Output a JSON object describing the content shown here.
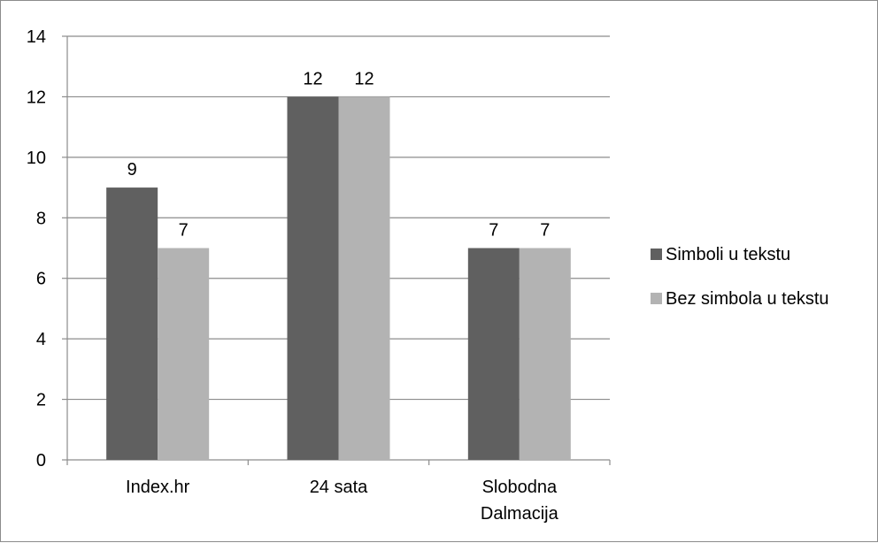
{
  "chart_data": {
    "type": "bar",
    "categories": [
      "Index.hr",
      "24 sata",
      "Slobodna Dalmacija"
    ],
    "category_lines": [
      [
        "Index.hr"
      ],
      [
        "24 sata"
      ],
      [
        "Slobodna",
        "Dalmacija"
      ]
    ],
    "series": [
      {
        "name": "Simboli u tekstu",
        "values": [
          9,
          12,
          7
        ],
        "color": "#606060"
      },
      {
        "name": "Bez simbola u tekstu",
        "values": [
          7,
          12,
          7
        ],
        "color": "#b3b3b3"
      }
    ],
    "ylim": [
      0,
      14
    ],
    "yticks": [
      0,
      2,
      4,
      6,
      8,
      10,
      12,
      14
    ],
    "grid": true,
    "legend": "right",
    "data_labels": true,
    "title": "",
    "xlabel": "",
    "ylabel": ""
  }
}
